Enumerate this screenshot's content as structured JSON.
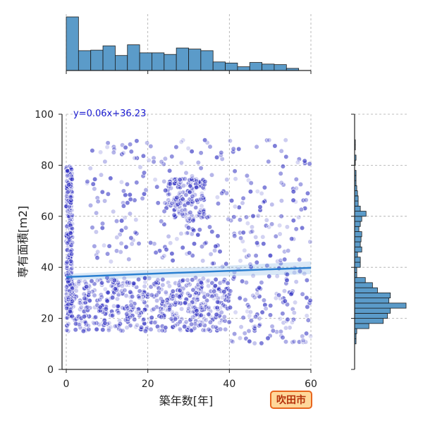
{
  "chart_data": {
    "type": "scatter",
    "xlabel": "築年数[年]",
    "ylabel": "専有面積[m2]",
    "xlim": [
      0,
      60
    ],
    "ylim": [
      0,
      100
    ],
    "xticks": [
      0,
      20,
      40,
      60
    ],
    "yticks": [
      0,
      20,
      40,
      60,
      80,
      100
    ],
    "grid": true,
    "regression": {
      "label": "y=0.06x+36.23",
      "slope": 0.06,
      "intercept": 36.23
    },
    "colors": {
      "points": "#2b2bc0",
      "regression": "#2a7fd0",
      "hist_fill": "#5b9bc9",
      "hist_edge": "#1a1a1a"
    },
    "scatter_clusters": [
      {
        "n": 560,
        "xmin": 0,
        "xmax": 40,
        "ymin": 15,
        "ymax": 36
      },
      {
        "n": 240,
        "xmin": 0,
        "xmax": 1.5,
        "ymin": 20,
        "ymax": 80
      },
      {
        "n": 150,
        "xmin": 24,
        "xmax": 34,
        "ymin": 58,
        "ymax": 75
      },
      {
        "n": 300,
        "xmin": 5,
        "xmax": 60,
        "ymin": 40,
        "ymax": 90
      },
      {
        "n": 120,
        "xmin": 40,
        "xmax": 60,
        "ymin": 10,
        "ymax": 40
      }
    ],
    "x_hist": {
      "bin_edges": [
        0,
        3,
        6,
        9,
        12,
        15,
        18,
        21,
        24,
        27,
        30,
        33,
        36,
        39,
        42,
        45,
        48,
        51,
        54,
        57,
        60
      ],
      "counts": [
        100,
        37,
        38,
        46,
        28,
        48,
        33,
        33,
        30,
        42,
        40,
        37,
        16,
        14,
        7,
        15,
        12,
        11,
        4,
        0
      ]
    },
    "y_hist": {
      "bin_edges": [
        10,
        12,
        14,
        16,
        18,
        20,
        22,
        24,
        26,
        28,
        30,
        32,
        34,
        36,
        38,
        40,
        42,
        44,
        46,
        48,
        50,
        52,
        54,
        56,
        58,
        60,
        62,
        64,
        66,
        68,
        70,
        72,
        74,
        76,
        78,
        80,
        82,
        84,
        86,
        88,
        90,
        92,
        94,
        96,
        98,
        100
      ],
      "counts": [
        2,
        2,
        3,
        20,
        40,
        46,
        50,
        72,
        48,
        50,
        32,
        25,
        15,
        3,
        3,
        8,
        8,
        4,
        10,
        8,
        9,
        10,
        6,
        8,
        10,
        16,
        8,
        5,
        5,
        4,
        3,
        2,
        2,
        2,
        0,
        1,
        2,
        0,
        1,
        1,
        0,
        0,
        0,
        0,
        0
      ]
    }
  },
  "badge": {
    "label": "吹田市"
  }
}
